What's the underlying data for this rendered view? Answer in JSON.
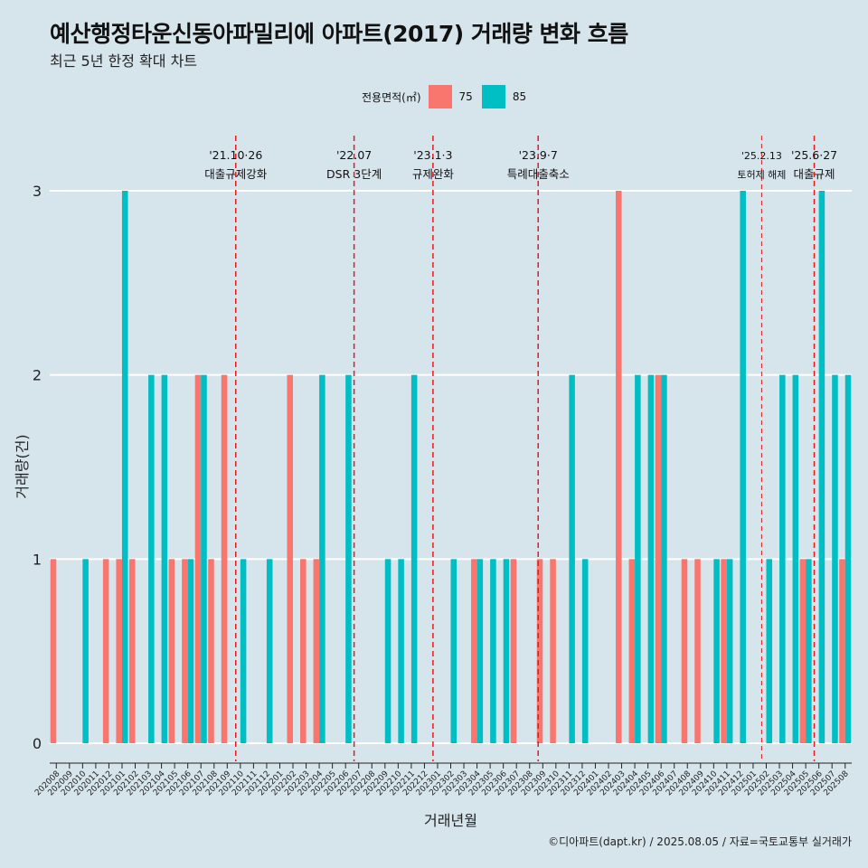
{
  "title": "예산행정타운신동아파밀리에 아파트(2017) 거래량 변화 흐름",
  "subtitle": "최근 5년 한정 확대 차트",
  "caption": "©디아파트(dapt.kr) / 2025.08.05 / 자료=국토교통부 실거래가",
  "colors": {
    "s75": "#f8766d",
    "s85": "#00bfc4",
    "vline": "#e41a1c",
    "grid": "#ffffff"
  },
  "chart_data": {
    "type": "bar",
    "title": "예산행정타운신동아파밀리에 아파트(2017) 거래량 변화 흐름",
    "subtitle": "최근 5년 한정 확대 차트",
    "xlabel": "거래년월",
    "ylabel": "거래량(건)",
    "ylim": [
      0,
      3
    ],
    "yticks": [
      0,
      1,
      2,
      3
    ],
    "legend_title": "전용면적(㎡)",
    "legend_position": "top",
    "grid": true,
    "categories": [
      "202008",
      "202009",
      "202010",
      "202011",
      "202012",
      "202101",
      "202102",
      "202103",
      "202104",
      "202105",
      "202106",
      "202107",
      "202108",
      "202109",
      "202110",
      "202111",
      "202112",
      "202201",
      "202202",
      "202203",
      "202204",
      "202205",
      "202206",
      "202207",
      "202208",
      "202209",
      "202210",
      "202211",
      "202212",
      "202301",
      "202302",
      "202303",
      "202304",
      "202305",
      "202306",
      "202307",
      "202308",
      "202309",
      "202310",
      "202311",
      "202312",
      "202401",
      "202402",
      "202403",
      "202404",
      "202405",
      "202406",
      "202407",
      "202408",
      "202409",
      "202410",
      "202411",
      "202412",
      "202501",
      "202502",
      "202503",
      "202504",
      "202505",
      "202506",
      "202507",
      "202508"
    ],
    "series": [
      {
        "name": "75",
        "color": "#f8766d",
        "values": [
          1,
          0,
          0,
          0,
          1,
          1,
          1,
          0,
          0,
          1,
          1,
          2,
          1,
          2,
          0,
          0,
          0,
          0,
          2,
          1,
          1,
          0,
          0,
          0,
          0,
          0,
          0,
          0,
          0,
          0,
          0,
          0,
          1,
          0,
          0,
          1,
          0,
          1,
          1,
          0,
          0,
          0,
          0,
          3,
          1,
          0,
          2,
          0,
          1,
          1,
          0,
          1,
          0,
          0,
          0,
          0,
          0,
          1,
          0,
          0,
          1
        ]
      },
      {
        "name": "85",
        "color": "#00bfc4",
        "values": [
          0,
          0,
          1,
          0,
          0,
          3,
          0,
          2,
          2,
          0,
          1,
          2,
          0,
          0,
          1,
          0,
          1,
          0,
          0,
          0,
          2,
          0,
          2,
          0,
          0,
          1,
          1,
          2,
          0,
          0,
          1,
          0,
          1,
          1,
          1,
          0,
          0,
          0,
          0,
          2,
          1,
          0,
          0,
          0,
          2,
          2,
          2,
          0,
          0,
          0,
          1,
          1,
          3,
          0,
          1,
          2,
          2,
          1,
          3,
          2,
          2
        ]
      }
    ],
    "annotations": [
      {
        "x": "202110",
        "label_top": "'21.10·26",
        "label_bottom": "대출규제강화",
        "style": "dashed"
      },
      {
        "x": "202207",
        "label_top": "'22.07",
        "label_bottom": "DSR 3단계",
        "style": "dashed"
      },
      {
        "x": "202301",
        "label_top": "'23.1·3",
        "label_bottom": "규제완화",
        "style": "dashed"
      },
      {
        "x": "202309",
        "label_top": "'23.9·7",
        "label_bottom": "특례대출축소",
        "style": "dashed"
      },
      {
        "x": "202502",
        "label_top": "'25.2.13",
        "label_bottom": "토허제 해제",
        "style": "dashed-thin"
      },
      {
        "x": "202506",
        "label_top": "'25.6·27",
        "label_bottom": "대출규제",
        "style": "dashed"
      }
    ]
  }
}
